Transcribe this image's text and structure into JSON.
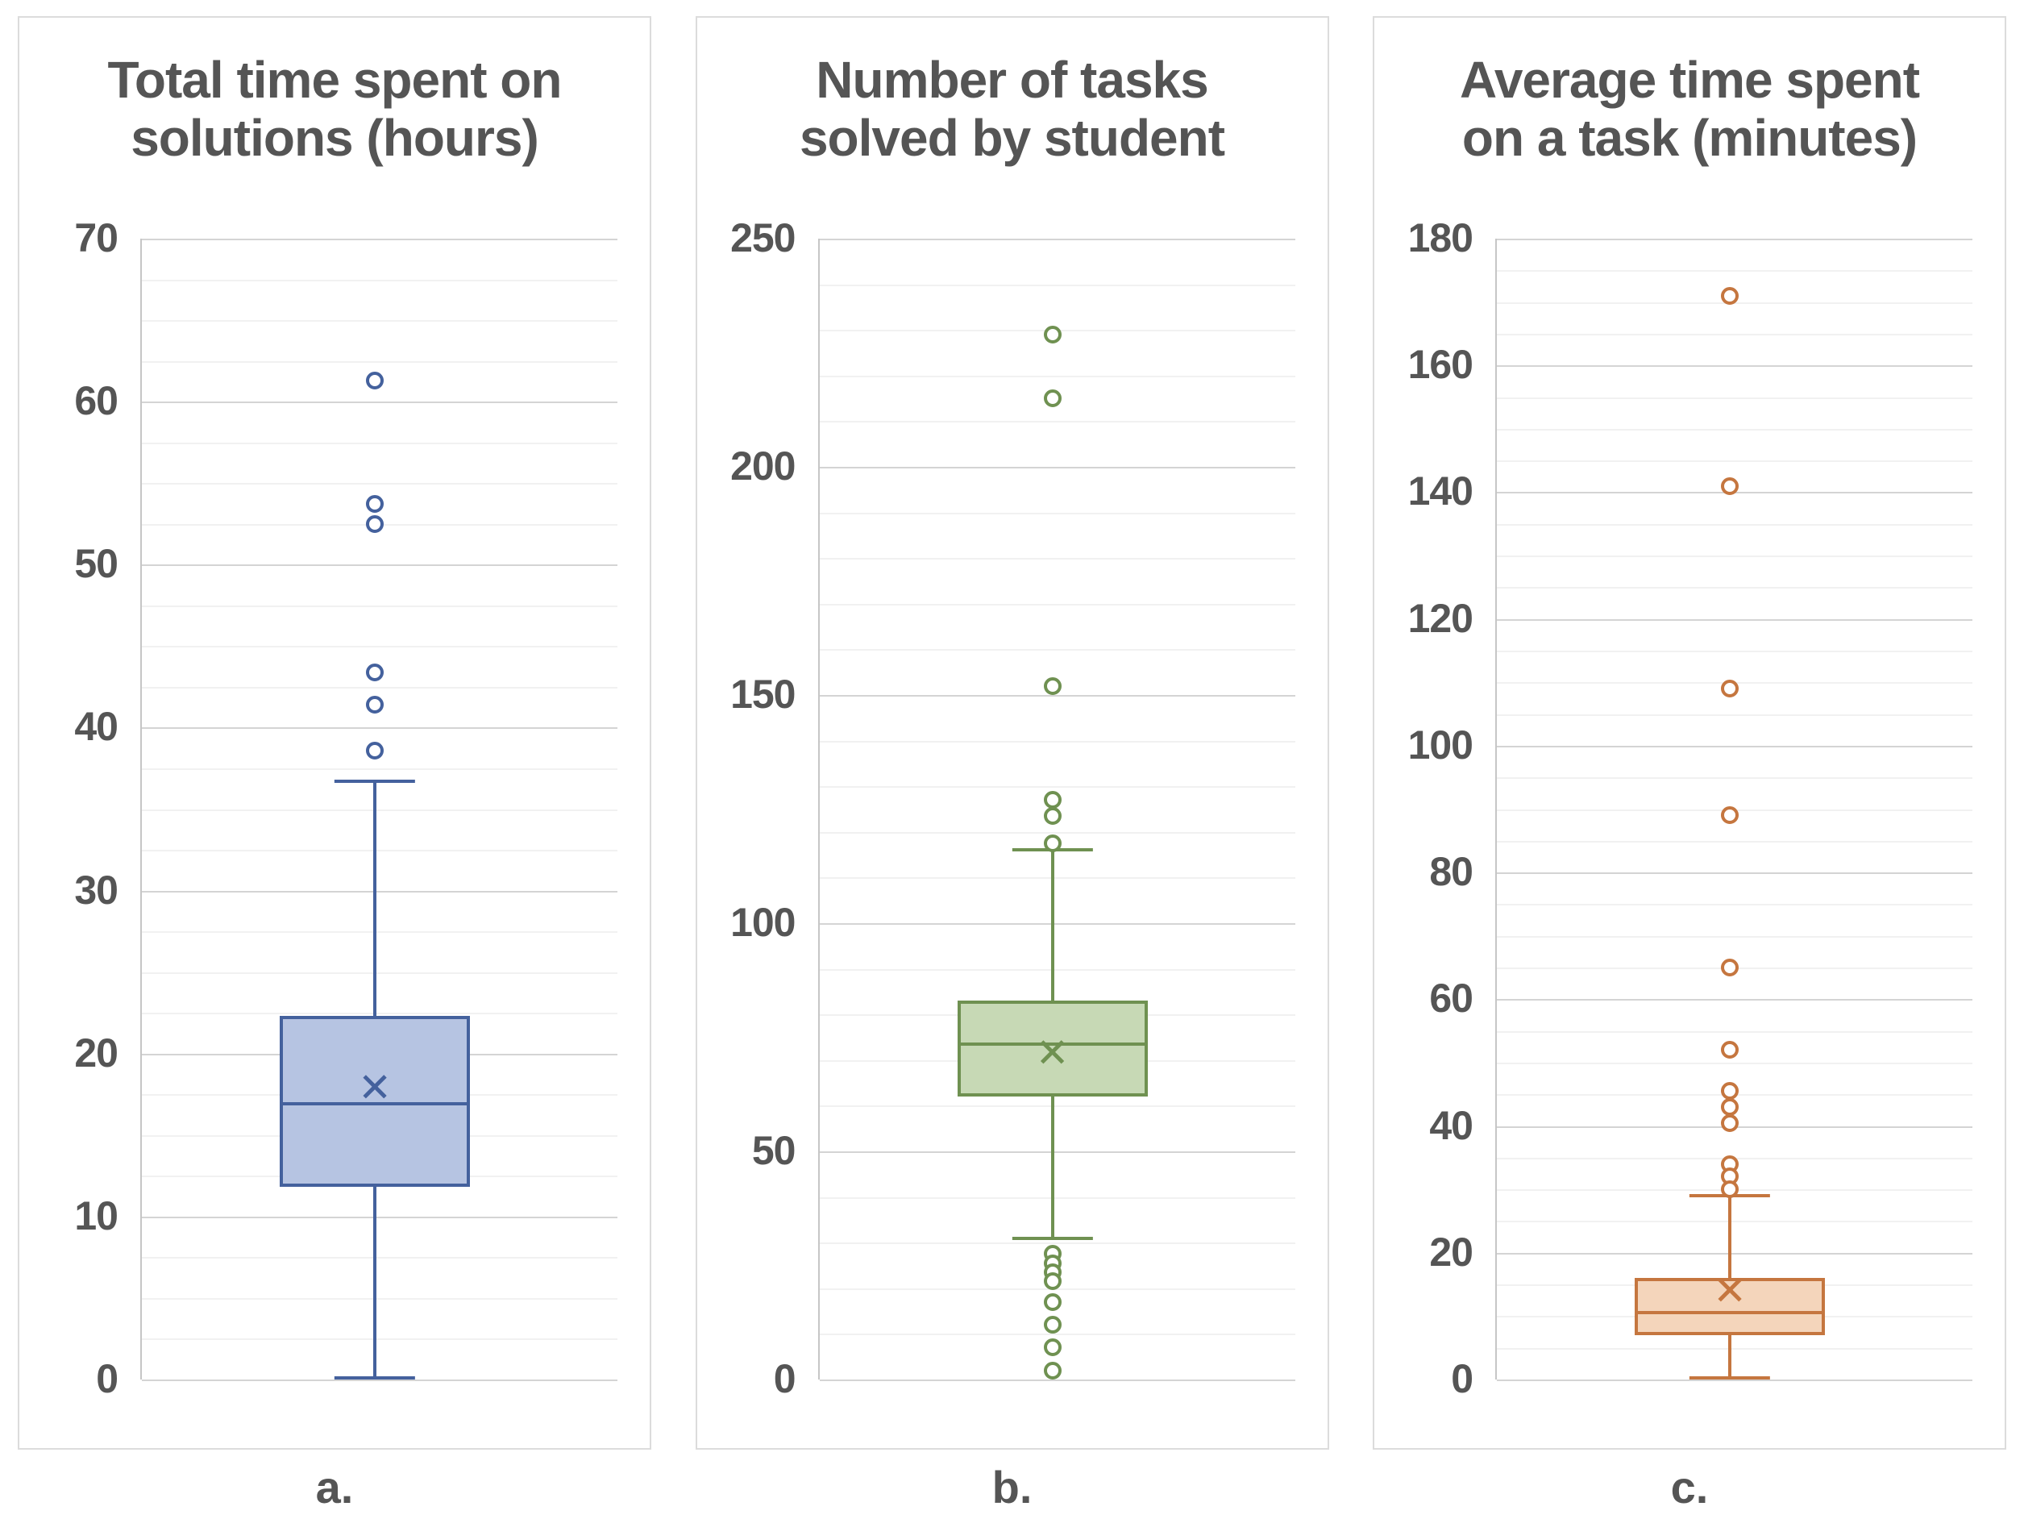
{
  "figure": {
    "background": "#ffffff",
    "grid": "on",
    "legend": "none"
  },
  "chart_data": [
    {
      "type": "box",
      "panel_label": "a.",
      "title": "Total time spent on solutions (hours)",
      "xlabel": "",
      "ylabel": "",
      "ylim": [
        0,
        70
      ],
      "ytick_step": 10,
      "minor_grid_step": 2.5,
      "ytick_labels": [
        "0",
        "10",
        "20",
        "30",
        "40",
        "50",
        "60",
        "70"
      ],
      "box": {
        "whisker_low": 0.1,
        "q1": 11.8,
        "median": 16.9,
        "mean": 17.9,
        "q3": 22.3,
        "whisker_high": 36.7
      },
      "outliers": [
        61.3,
        53.7,
        52.5,
        43.4,
        41.4,
        38.6
      ],
      "color": {
        "stroke": "#44619d",
        "fill": "#b6c4e2"
      }
    },
    {
      "type": "box",
      "panel_label": "b.",
      "title": "Number of tasks solved by student",
      "xlabel": "",
      "ylabel": "",
      "ylim": [
        0,
        250
      ],
      "ytick_step": 50,
      "minor_grid_step": 10,
      "ytick_labels": [
        "0",
        "50",
        "100",
        "150",
        "200",
        "250"
      ],
      "box": {
        "whisker_low": 31,
        "q1": 62,
        "median": 73.5,
        "mean": 71.5,
        "q3": 83,
        "whisker_high": 116
      },
      "outliers": [
        229,
        215,
        152,
        127,
        123.5,
        117.5,
        27.5,
        25.5,
        23.5,
        21.5,
        17,
        12,
        7,
        2
      ],
      "color": {
        "stroke": "#6f9151",
        "fill": "#c7d9b5"
      }
    },
    {
      "type": "box",
      "panel_label": "c.",
      "title": "Average time spent on a task (minutes)",
      "xlabel": "",
      "ylabel": "",
      "ylim": [
        0,
        180
      ],
      "ytick_step": 20,
      "minor_grid_step": 5,
      "ytick_labels": [
        "0",
        "20",
        "40",
        "60",
        "80",
        "100",
        "120",
        "140",
        "160",
        "180"
      ],
      "box": {
        "whisker_low": 0.3,
        "q1": 7,
        "median": 10.5,
        "mean": 14,
        "q3": 16,
        "whisker_high": 29
      },
      "outliers": [
        171,
        141,
        109,
        89,
        65,
        52,
        45.5,
        43,
        40.5,
        34,
        32,
        30
      ],
      "color": {
        "stroke": "#c5763f",
        "fill": "#f4d5bb"
      }
    }
  ],
  "style": {
    "grid_major_color": "#d4d4d4",
    "grid_minor_color": "#f1f1f1",
    "axis_line_color": "#c6c6c6",
    "text_color": "#555555",
    "card_border_color": "#dcdcdc"
  }
}
